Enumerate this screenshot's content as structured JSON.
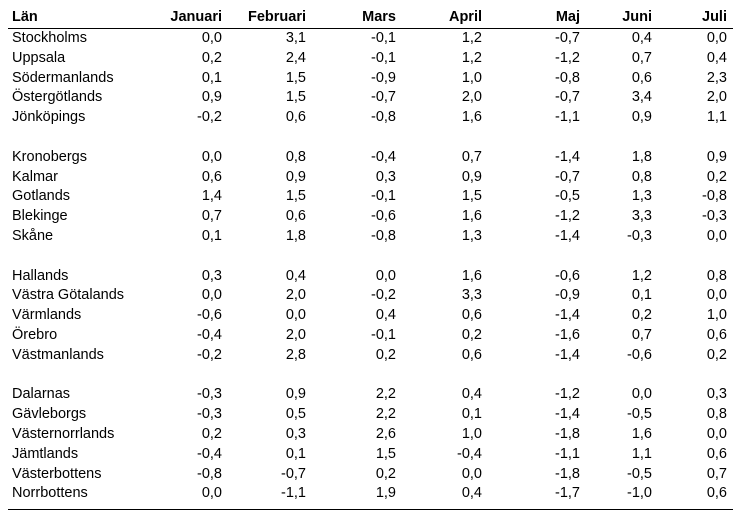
{
  "table": {
    "headers": [
      "Län",
      "Januari",
      "Februari",
      "Mars",
      "April",
      "Maj",
      "Juni",
      "Juli"
    ],
    "groups": [
      [
        [
          "Stockholms",
          "0,0",
          "3,1",
          "-0,1",
          "1,2",
          "-0,7",
          "0,4",
          "0,0"
        ],
        [
          "Uppsala",
          "0,2",
          "2,4",
          "-0,1",
          "1,2",
          "-1,2",
          "0,7",
          "0,4"
        ],
        [
          "Södermanlands",
          "0,1",
          "1,5",
          "-0,9",
          "1,0",
          "-0,8",
          "0,6",
          "2,3"
        ],
        [
          "Östergötlands",
          "0,9",
          "1,5",
          "-0,7",
          "2,0",
          "-0,7",
          "3,4",
          "2,0"
        ],
        [
          "Jönköpings",
          "-0,2",
          "0,6",
          "-0,8",
          "1,6",
          "-1,1",
          "0,9",
          "1,1"
        ]
      ],
      [
        [
          "Kronobergs",
          "0,0",
          "0,8",
          "-0,4",
          "0,7",
          "-1,4",
          "1,8",
          "0,9"
        ],
        [
          "Kalmar",
          "0,6",
          "0,9",
          "0,3",
          "0,9",
          "-0,7",
          "0,8",
          "0,2"
        ],
        [
          "Gotlands",
          "1,4",
          "1,5",
          "-0,1",
          "1,5",
          "-0,5",
          "1,3",
          "-0,8"
        ],
        [
          "Blekinge",
          "0,7",
          "0,6",
          "-0,6",
          "1,6",
          "-1,2",
          "3,3",
          "-0,3"
        ],
        [
          "Skåne",
          "0,1",
          "1,8",
          "-0,8",
          "1,3",
          "-1,4",
          "-0,3",
          "0,0"
        ]
      ],
      [
        [
          "Hallands",
          "0,3",
          "0,4",
          "0,0",
          "1,6",
          "-0,6",
          "1,2",
          "0,8"
        ],
        [
          "Västra Götalands",
          "0,0",
          "2,0",
          "-0,2",
          "3,3",
          "-0,9",
          "0,1",
          "0,0"
        ],
        [
          "Värmlands",
          "-0,6",
          "0,0",
          "0,4",
          "0,6",
          "-1,4",
          "0,2",
          "1,0"
        ],
        [
          "Örebro",
          "-0,4",
          "2,0",
          "-0,1",
          "0,2",
          "-1,6",
          "0,7",
          "0,6"
        ],
        [
          "Västmanlands",
          "-0,2",
          "2,8",
          "0,2",
          "0,6",
          "-1,4",
          "-0,6",
          "0,2"
        ]
      ],
      [
        [
          "Dalarnas",
          "-0,3",
          "0,9",
          "2,2",
          "0,4",
          "-1,2",
          "0,0",
          "0,3"
        ],
        [
          "Gävleborgs",
          "-0,3",
          "0,5",
          "2,2",
          "0,1",
          "-1,4",
          "-0,5",
          "0,8"
        ],
        [
          "Västernorrlands",
          "0,2",
          "0,3",
          "2,6",
          "1,0",
          "-1,8",
          "1,6",
          "0,0"
        ],
        [
          "Jämtlands",
          "-0,4",
          "0,1",
          "1,5",
          "-0,4",
          "-1,1",
          "1,1",
          "0,6"
        ],
        [
          "Västerbottens",
          "-0,8",
          "-0,7",
          "0,2",
          "0,0",
          "-1,8",
          "-0,5",
          "0,7"
        ],
        [
          "Norrbottens",
          "0,0",
          "-1,1",
          "1,9",
          "0,4",
          "-1,7",
          "-1,0",
          "0,6"
        ]
      ]
    ]
  }
}
